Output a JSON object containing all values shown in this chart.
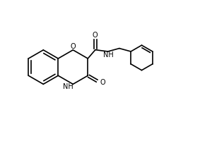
{
  "background_color": "#ffffff",
  "line_color": "#000000",
  "line_width": 1.2,
  "figsize": [
    3.0,
    2.0
  ],
  "dpi": 100,
  "xlim": [
    0,
    10
  ],
  "ylim": [
    0,
    6.67
  ]
}
